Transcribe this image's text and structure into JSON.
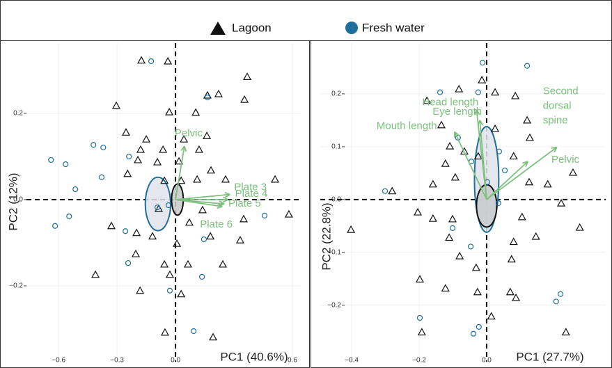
{
  "chart_data": [
    {
      "type": "biplot",
      "xlabel": "PC1 (40.6%)",
      "ylabel": "PC2 (12%)",
      "xlim": [
        -0.765,
        0.643
      ],
      "ylim": [
        -0.376,
        0.363
      ],
      "xticks": [
        {
          "value": -0.6,
          "label": "−0.6"
        },
        {
          "value": -0.3,
          "label": "−0.3"
        },
        {
          "value": 0,
          "label": "0.0"
        },
        {
          "value": 0.6,
          "label": "0.6"
        }
      ],
      "yticks": [
        0.2,
        {
          "value": 0,
          "label": "0.0"
        },
        {
          "value": -0.2,
          "label": "−0.2"
        }
      ],
      "grid": true,
      "zero_lines": true,
      "series": [
        {
          "name": "Lagoon",
          "marker": "triangle",
          "color": "#111111",
          "x": [
            -0.175,
            -0.039,
            0.368,
            0.221,
            0.164,
            0.354,
            -0.304,
            -0.032,
            0.104,
            -0.254,
            -0.15,
            0.161,
            0.043,
            -0.179,
            -0.064,
            0.121,
            -0.193,
            -0.093,
            0.018,
            0.182,
            -0.246,
            -0.057,
            0.029,
            0.111,
            0.257,
            0.511,
            0.582,
            0.35,
            -0.329,
            -0.2,
            -0.118,
            0.007,
            0.179,
            0.332,
            -0.204,
            -0.057,
            0.064,
            0.243,
            -0.411,
            -0.029,
            -0.182,
            0.029,
            -0.054,
            0.193,
            -0.086,
            0.071,
            0.139
          ],
          "values": [
            0.323,
            0.321,
            0.285,
            0.245,
            0.242,
            0.232,
            0.218,
            0.203,
            0.202,
            0.156,
            0.14,
            0.148,
            0.14,
            0.116,
            0.116,
            0.116,
            0.092,
            0.087,
            0.089,
            0.068,
            0.06,
            0.044,
            0.044,
            0.047,
            0.047,
            0.047,
            -0.034,
            -0.045,
            -0.061,
            -0.077,
            -0.085,
            -0.102,
            -0.085,
            -0.094,
            -0.126,
            -0.15,
            -0.15,
            -0.15,
            -0.174,
            -0.174,
            -0.211,
            -0.219,
            -0.308,
            -0.319,
            -0.021,
            -0.053,
            -0.024
          ]
        },
        {
          "name": "Fresh water",
          "marker": "circle",
          "color": "#1f6f9a",
          "x": [
            -0.125,
            -0.639,
            -0.564,
            -0.421,
            -0.371,
            -0.239,
            -0.379,
            -0.514,
            -0.618,
            -0.546,
            -0.257,
            0.164,
            -0.243,
            -0.029,
            0.093,
            0.136,
            0.146,
            0.457,
            -0.036,
            -0.093
          ],
          "values": [
            0.321,
            0.092,
            0.082,
            0.127,
            0.121,
            0.1,
            0.052,
            0.024,
            -0.061,
            -0.039,
            -0.073,
            0.237,
            -0.147,
            -0.211,
            -0.305,
            -0.179,
            -0.092,
            -0.037,
            -0.013,
            -0.018
          ]
        }
      ],
      "ellipses": [
        {
          "cx": -0.09,
          "cy": -0.01,
          "rx": 0.065,
          "ry": 0.062,
          "stroke": "#1f6f9a",
          "fill": "#dfe3ea"
        },
        {
          "cx": 0.01,
          "cy": 0.0,
          "rx": 0.03,
          "ry": 0.036,
          "stroke": "#111111",
          "fill": "#c8cacd"
        }
      ],
      "loadings": [
        {
          "label": "Pelvic",
          "x": 0.046,
          "y": 0.124
        },
        {
          "label": "Plate 3",
          "x": 0.28,
          "y": 0.012
        },
        {
          "label": "Plate 4",
          "x": 0.27,
          "y": 0.0
        },
        {
          "label": "Plate 5",
          "x": 0.25,
          "y": -0.01
        },
        {
          "label": "Plate 6",
          "x": 0.24,
          "y": -0.016
        }
      ],
      "loading_color": "#7fbf7f"
    },
    {
      "type": "biplot",
      "xlabel": "PC1 (27.7%)",
      "ylabel": "PC2 (22.8%)",
      "xlim": [
        -0.493,
        0.353
      ],
      "ylim": [
        -0.307,
        0.296
      ],
      "xticks": [
        {
          "value": -0.4,
          "label": "−0.4"
        },
        {
          "value": -0.2,
          "label": "−0.2"
        },
        {
          "value": 0,
          "label": "0.0"
        }
      ],
      "yticks": [
        0.2,
        0.1,
        {
          "value": 0,
          "label": "0.0"
        },
        {
          "value": -0.1,
          "label": "−0.1"
        },
        {
          "value": -0.2,
          "label": "−0.2"
        }
      ],
      "grid": true,
      "zero_lines": true,
      "series": [
        {
          "marker": "triangle",
          "color": "#111111",
          "x": [
            -0.014,
            -0.082,
            0.025,
            0.085,
            -0.177,
            0.12,
            -0.134,
            0.025,
            0.128,
            -0.109,
            -0.066,
            -0.122,
            -0.025,
            0.08,
            0.256,
            -0.093,
            -0.159,
            0.181,
            0.126,
            -0.28,
            0.221,
            -0.204,
            -0.159,
            -0.101,
            0.105,
            0.276,
            -0.402,
            -0.111,
            0.08,
            0.146,
            -0.08,
            0.074,
            -0.031,
            -0.198,
            -0.122,
            -0.027,
            0.07,
            0.087,
            -0.192,
            0.235,
            0.014
          ],
          "values": [
            0.226,
            0.209,
            0.203,
            0.196,
            0.187,
            0.15,
            0.141,
            0.134,
            0.117,
            0.101,
            0.091,
            0.068,
            0.082,
            0.082,
            0.051,
            0.042,
            0.029,
            0.029,
            0.033,
            0.016,
            -0.007,
            -0.024,
            -0.036,
            -0.037,
            -0.033,
            -0.053,
            -0.057,
            -0.072,
            -0.08,
            -0.07,
            -0.107,
            -0.113,
            -0.129,
            -0.151,
            -0.168,
            -0.175,
            -0.175,
            -0.186,
            -0.251,
            -0.251,
            -0.221
          ]
        },
        {
          "marker": "circle",
          "color": "#1f6f9a",
          "x": [
            -0.012,
            0.12,
            -0.138,
            -0.025,
            -0.085,
            0.037,
            -0.045,
            0.054,
            -0.301,
            -0.101,
            -0.047,
            0.035,
            0.219,
            0.206,
            -0.198,
            -0.023,
            -0.039,
            0.002
          ],
          "values": [
            0.259,
            0.253,
            0.203,
            0.203,
            0.117,
            0.091,
            0.072,
            0.055,
            0.016,
            -0.054,
            -0.089,
            -0.007,
            -0.179,
            -0.193,
            -0.224,
            -0.241,
            -0.254,
            0.033
          ]
        }
      ],
      "ellipses": [
        {
          "cx": 0.0,
          "cy": 0.038,
          "rx": 0.036,
          "ry": 0.1,
          "stroke": "#1f6f9a",
          "fill": "#dfe3ea"
        },
        {
          "cx": 0.0,
          "cy": -0.012,
          "rx": 0.03,
          "ry": 0.04,
          "stroke": "#111111",
          "fill": "#c8cacd"
        }
      ],
      "loadings": [
        {
          "label": "Head length",
          "x": -0.03,
          "y": 0.17
        },
        {
          "label": "Eye length",
          "x": -0.02,
          "y": 0.15
        },
        {
          "label": "Mouth length",
          "x": -0.095,
          "y": 0.128
        },
        {
          "label": "Second dorsal spine",
          "x": 0.208,
          "y": 0.099
        },
        {
          "label": "Pelvic",
          "x": 0.122,
          "y": 0.072
        }
      ],
      "loading_color": "#7fbf7f"
    }
  ]
}
